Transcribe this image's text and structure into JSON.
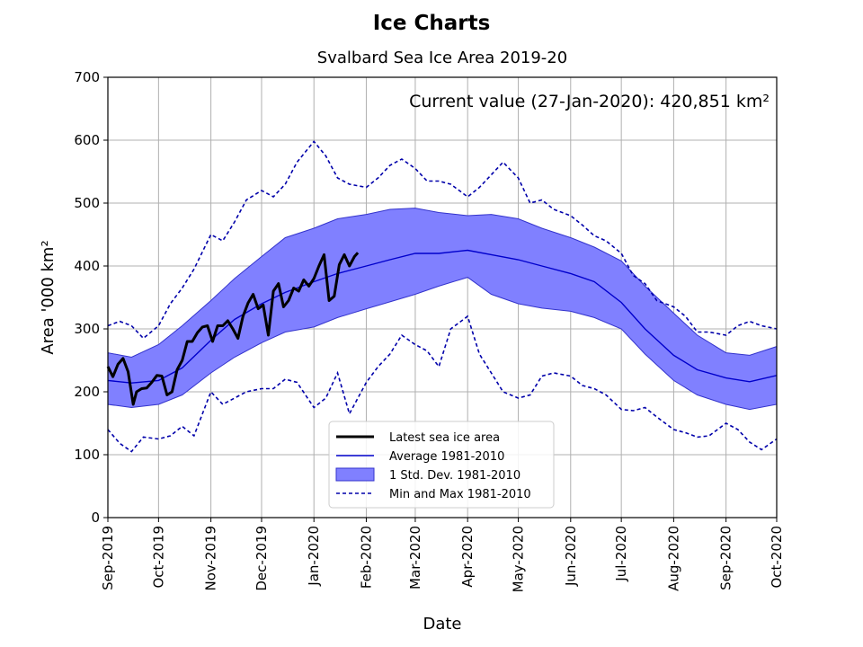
{
  "suptitle": "Ice Charts",
  "chart_data": {
    "type": "line",
    "title": "Svalbard Sea Ice Area 2019-20",
    "annotation": "Current value (27-Jan-2020): 420,851 km²",
    "xlabel": "Date",
    "ylabel": "Area '000 km²",
    "ylim": [
      0,
      700
    ],
    "xlim": [
      "2019-09-01",
      "2020-10-01"
    ],
    "yticks": [
      0,
      100,
      200,
      300,
      400,
      500,
      600,
      700
    ],
    "xticks": [
      {
        "date": "2019-09-01",
        "label": "Sep-2019"
      },
      {
        "date": "2019-10-01",
        "label": "Oct-2019"
      },
      {
        "date": "2019-11-01",
        "label": "Nov-2019"
      },
      {
        "date": "2019-12-01",
        "label": "Dec-2019"
      },
      {
        "date": "2020-01-01",
        "label": "Jan-2020"
      },
      {
        "date": "2020-02-01",
        "label": "Feb-2020"
      },
      {
        "date": "2020-03-01",
        "label": "Mar-2020"
      },
      {
        "date": "2020-04-01",
        "label": "Apr-2020"
      },
      {
        "date": "2020-05-01",
        "label": "May-2020"
      },
      {
        "date": "2020-06-01",
        "label": "Jun-2020"
      },
      {
        "date": "2020-07-01",
        "label": "Jul-2020"
      },
      {
        "date": "2020-08-01",
        "label": "Aug-2020"
      },
      {
        "date": "2020-09-01",
        "label": "Sep-2020"
      },
      {
        "date": "2020-10-01",
        "label": "Oct-2020"
      }
    ],
    "grid": true,
    "legend_position": "lower-center",
    "colors": {
      "latest": "#000000",
      "average": "#0000cc",
      "band_fill": "#8080ff",
      "band_edge": "#3333cc",
      "minmax": "#0000aa",
      "grid": "#b0b0b0"
    },
    "series": [
      {
        "name": "Latest sea ice area",
        "style": "thick-black",
        "x": [
          "2019-09-01",
          "2019-09-04",
          "2019-09-07",
          "2019-09-10",
          "2019-09-13",
          "2019-09-16",
          "2019-09-18",
          "2019-09-21",
          "2019-09-24",
          "2019-09-27",
          "2019-09-30",
          "2019-10-03",
          "2019-10-06",
          "2019-10-09",
          "2019-10-12",
          "2019-10-15",
          "2019-10-18",
          "2019-10-21",
          "2019-10-24",
          "2019-10-27",
          "2019-10-30",
          "2019-11-02",
          "2019-11-05",
          "2019-11-08",
          "2019-11-11",
          "2019-11-14",
          "2019-11-17",
          "2019-11-20",
          "2019-11-23",
          "2019-11-26",
          "2019-11-29",
          "2019-12-02",
          "2019-12-05",
          "2019-12-08",
          "2019-12-11",
          "2019-12-14",
          "2019-12-17",
          "2019-12-20",
          "2019-12-23",
          "2019-12-26",
          "2019-12-29",
          "2020-01-01",
          "2020-01-04",
          "2020-01-07",
          "2020-01-10",
          "2020-01-13",
          "2020-01-16",
          "2020-01-19",
          "2020-01-22",
          "2020-01-25",
          "2020-01-27"
        ],
        "values": [
          240,
          224,
          244,
          253,
          232,
          180,
          200,
          205,
          206,
          215,
          226,
          225,
          195,
          200,
          235,
          250,
          280,
          280,
          294,
          303,
          305,
          280,
          305,
          305,
          313,
          300,
          285,
          320,
          341,
          355,
          332,
          338,
          290,
          360,
          372,
          335,
          345,
          365,
          360,
          378,
          368,
          380,
          400,
          418,
          345,
          352,
          402,
          418,
          400,
          415,
          421
        ]
      },
      {
        "name": "Average 1981-2010",
        "style": "thin-blue",
        "x": [
          "2019-09-01",
          "2019-09-15",
          "2019-10-01",
          "2019-10-15",
          "2019-11-01",
          "2019-11-15",
          "2019-12-01",
          "2019-12-15",
          "2020-01-01",
          "2020-01-15",
          "2020-02-01",
          "2020-02-15",
          "2020-03-01",
          "2020-03-15",
          "2020-04-01",
          "2020-04-15",
          "2020-05-01",
          "2020-05-15",
          "2020-06-01",
          "2020-06-15",
          "2020-07-01",
          "2020-07-15",
          "2020-08-01",
          "2020-08-15",
          "2020-09-01",
          "2020-09-15",
          "2020-10-01"
        ],
        "values": [
          218,
          214,
          218,
          238,
          282,
          315,
          340,
          358,
          375,
          388,
          400,
          410,
          420,
          420,
          425,
          418,
          410,
          400,
          388,
          375,
          342,
          300,
          258,
          235,
          222,
          216,
          226
        ]
      },
      {
        "name": "1 Std. Dev. 1981-2010",
        "style": "band",
        "x": [
          "2019-09-01",
          "2019-09-15",
          "2019-10-01",
          "2019-10-15",
          "2019-11-01",
          "2019-11-15",
          "2019-12-01",
          "2019-12-15",
          "2020-01-01",
          "2020-01-15",
          "2020-02-01",
          "2020-02-15",
          "2020-03-01",
          "2020-03-15",
          "2020-04-01",
          "2020-04-15",
          "2020-05-01",
          "2020-05-15",
          "2020-06-01",
          "2020-06-15",
          "2020-07-01",
          "2020-07-15",
          "2020-08-01",
          "2020-08-15",
          "2020-09-01",
          "2020-09-15",
          "2020-10-01"
        ],
        "lower": [
          180,
          175,
          180,
          195,
          230,
          255,
          278,
          295,
          303,
          318,
          332,
          343,
          355,
          368,
          382,
          355,
          340,
          333,
          328,
          318,
          300,
          260,
          218,
          195,
          180,
          172,
          180
        ],
        "upper": [
          262,
          255,
          275,
          305,
          345,
          380,
          415,
          445,
          460,
          475,
          482,
          490,
          492,
          485,
          480,
          482,
          475,
          460,
          445,
          430,
          408,
          368,
          325,
          290,
          262,
          258,
          272
        ]
      },
      {
        "name": "Min and Max 1981-2010",
        "style": "dashed-blue",
        "x": [
          "2019-09-01",
          "2019-09-08",
          "2019-09-15",
          "2019-09-22",
          "2019-10-01",
          "2019-10-08",
          "2019-10-15",
          "2019-10-22",
          "2019-11-01",
          "2019-11-08",
          "2019-11-15",
          "2019-11-22",
          "2019-12-01",
          "2019-12-08",
          "2019-12-15",
          "2019-12-22",
          "2020-01-01",
          "2020-01-08",
          "2020-01-15",
          "2020-01-22",
          "2020-02-01",
          "2020-02-08",
          "2020-02-15",
          "2020-02-22",
          "2020-03-01",
          "2020-03-08",
          "2020-03-15",
          "2020-03-22",
          "2020-04-01",
          "2020-04-08",
          "2020-04-15",
          "2020-04-22",
          "2020-05-01",
          "2020-05-08",
          "2020-05-15",
          "2020-05-22",
          "2020-06-01",
          "2020-06-08",
          "2020-06-15",
          "2020-06-22",
          "2020-07-01",
          "2020-07-08",
          "2020-07-15",
          "2020-07-22",
          "2020-08-01",
          "2020-08-08",
          "2020-08-15",
          "2020-08-22",
          "2020-09-01",
          "2020-09-08",
          "2020-09-15",
          "2020-09-22",
          "2020-10-01"
        ],
        "max": [
          305,
          312,
          305,
          285,
          305,
          340,
          365,
          395,
          450,
          440,
          470,
          505,
          520,
          510,
          530,
          565,
          598,
          575,
          540,
          530,
          525,
          540,
          560,
          570,
          555,
          535,
          535,
          530,
          510,
          525,
          545,
          565,
          540,
          500,
          505,
          490,
          480,
          465,
          448,
          440,
          420,
          385,
          372,
          345,
          335,
          320,
          295,
          295,
          290,
          305,
          312,
          305,
          300
        ],
        "min": [
          140,
          118,
          105,
          128,
          125,
          130,
          145,
          130,
          200,
          180,
          190,
          200,
          205,
          205,
          220,
          215,
          175,
          190,
          230,
          165,
          215,
          240,
          260,
          290,
          275,
          265,
          240,
          300,
          320,
          260,
          230,
          200,
          190,
          195,
          225,
          230,
          225,
          210,
          205,
          195,
          172,
          170,
          175,
          160,
          140,
          135,
          128,
          130,
          150,
          140,
          120,
          108,
          125
        ]
      }
    ]
  }
}
